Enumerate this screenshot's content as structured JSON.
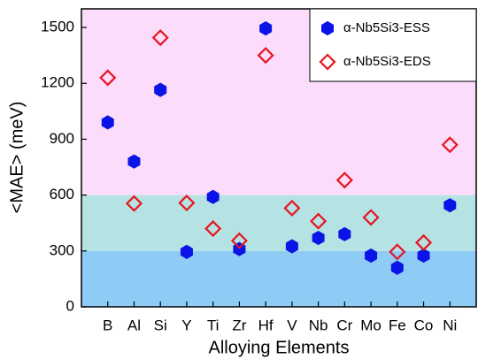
{
  "chart_data": {
    "type": "scatter",
    "x_label": "Alloying Elements",
    "y_label": "<MAE> (meV)",
    "categories": [
      "B",
      "Al",
      "Si",
      "Y",
      "Ti",
      "Zr",
      "Hf",
      "V",
      "Nb",
      "Cr",
      "Mo",
      "Fe",
      "Co",
      "Ni"
    ],
    "series": [
      {
        "name": "α-Nb5Si3-ESS",
        "color": "#0a14e6",
        "marker": "hexagon",
        "values": [
          990,
          780,
          1165,
          295,
          590,
          310,
          1495,
          325,
          370,
          390,
          275,
          210,
          275,
          545
        ]
      },
      {
        "name": "α-Nb5Si3-EDS",
        "color": "#e8141e",
        "marker": "diamond",
        "values": [
          1230,
          555,
          1445,
          558,
          420,
          355,
          1350,
          530,
          460,
          680,
          480,
          295,
          345,
          870
        ]
      }
    ],
    "bands": [
      {
        "from": 0,
        "to": 300,
        "color": "#8ecbf5"
      },
      {
        "from": 300,
        "to": 600,
        "color": "#b5e3e4"
      },
      {
        "from": 600,
        "to": 1600,
        "color": "#fbdcfb"
      }
    ],
    "ylim": [
      0,
      1600
    ],
    "yticks": [
      0,
      300,
      600,
      900,
      1200,
      1500
    ],
    "legend": "upper right"
  }
}
